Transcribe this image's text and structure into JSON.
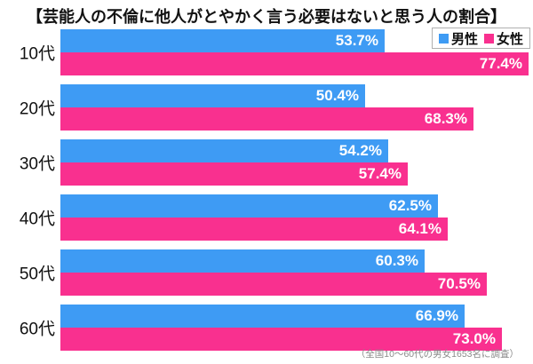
{
  "title": "【芸能人の不倫に他人がとやかく言う必要はないと思う人の割合】",
  "legend": {
    "male_label": "男性",
    "female_label": "女性"
  },
  "footnote": "（全国10〜60代の男女1653名に調査）",
  "colors": {
    "male": "#3e9bf4",
    "female": "#f9308f"
  },
  "chart_data": {
    "type": "bar",
    "orientation": "horizontal",
    "title": "【芸能人の不倫に他人がとやかく言う必要はないと思う人の割合】",
    "categories": [
      "10代",
      "20代",
      "30代",
      "40代",
      "50代",
      "60代"
    ],
    "series": [
      {
        "name": "男性",
        "color": "#3e9bf4",
        "values": [
          53.7,
          50.4,
          54.2,
          62.5,
          60.3,
          66.9
        ]
      },
      {
        "name": "女性",
        "color": "#f9308f",
        "values": [
          77.4,
          68.3,
          57.4,
          64.1,
          70.5,
          73.0
        ]
      }
    ],
    "value_suffix": "%",
    "xlabel": "",
    "ylabel": "",
    "xlim": [
      0,
      77.9
    ],
    "grid": false,
    "legend_position": "top-right",
    "value_labels": "inside-end",
    "annotation": "（全国10〜60代の男女1653名に調査）"
  }
}
